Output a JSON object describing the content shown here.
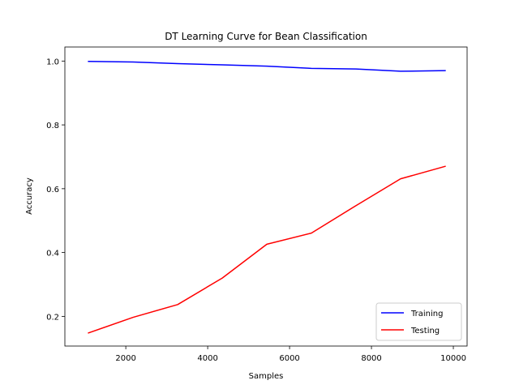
{
  "chart_data": {
    "type": "line",
    "title": "DT Learning Curve for Bean Classification",
    "xlabel": "Samples",
    "ylabel": "Accuracy",
    "xlim": [
      512,
      10336
    ],
    "ylim": [
      0.107,
      1.044
    ],
    "xticks": [
      2000,
      4000,
      6000,
      8000,
      10000
    ],
    "xtick_labels": [
      "2000",
      "4000",
      "6000",
      "8000",
      "10000"
    ],
    "yticks": [
      0.2,
      0.4,
      0.6,
      0.8,
      1.0
    ],
    "ytick_labels": [
      "0.2",
      "0.4",
      "0.6",
      "0.8",
      "1.0"
    ],
    "grid": false,
    "legend_position": "lower-right",
    "x": [
      1089,
      2178,
      3267,
      4356,
      5444,
      6533,
      7622,
      8711,
      9800
    ],
    "series": [
      {
        "name": "Training",
        "color": "#0000ff",
        "values": [
          0.999,
          0.997,
          0.992,
          0.988,
          0.984,
          0.977,
          0.975,
          0.968,
          0.97
        ]
      },
      {
        "name": "Testing",
        "color": "#ff0000",
        "values": [
          0.148,
          0.197,
          0.237,
          0.32,
          0.426,
          0.461,
          0.547,
          0.631,
          0.67
        ]
      }
    ]
  }
}
